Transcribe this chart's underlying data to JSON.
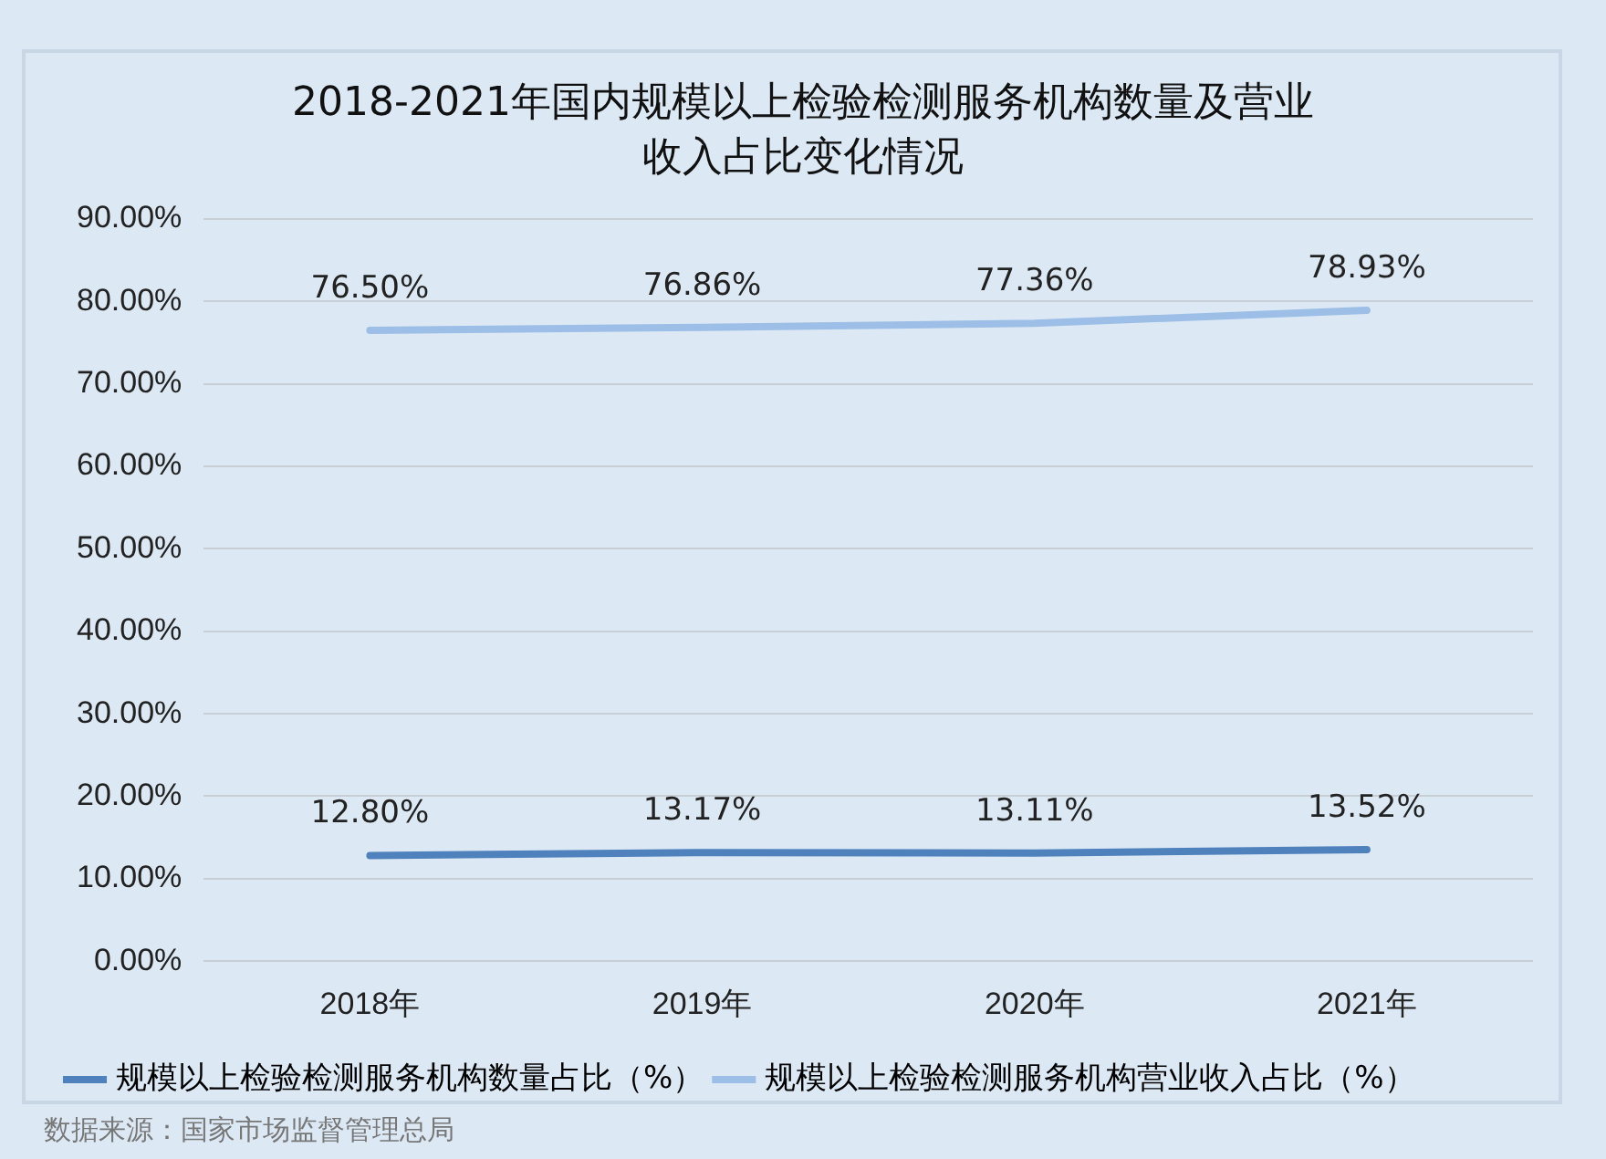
{
  "chart_data": {
    "type": "line",
    "title": "2018-2021年国内规模以上检验检测服务机构数量及营业收入占比变化情况",
    "categories": [
      "2018年",
      "2019年",
      "2020年",
      "2021年"
    ],
    "series": [
      {
        "name": "规模以上检验检测服务机构数量占比（%）",
        "color": "#4f81bd",
        "values": [
          12.8,
          13.17,
          13.11,
          13.52
        ],
        "value_labels": [
          "12.80%",
          "13.17%",
          "13.11%",
          "13.52%"
        ]
      },
      {
        "name": "规模以上检验检测服务机构营业收入占比（%）",
        "color": "#9dbee6",
        "values": [
          76.5,
          76.86,
          77.36,
          78.93
        ],
        "value_labels": [
          "76.50%",
          "76.86%",
          "77.36%",
          "78.93%"
        ]
      }
    ],
    "ylim": [
      0,
      90
    ],
    "yticks": [
      {
        "value": 0,
        "label": "0.00%"
      },
      {
        "value": 10,
        "label": "10.00%"
      },
      {
        "value": 20,
        "label": "20.00%"
      },
      {
        "value": 30,
        "label": "30.00%"
      },
      {
        "value": 40,
        "label": "40.00%"
      },
      {
        "value": 50,
        "label": "50.00%"
      },
      {
        "value": 60,
        "label": "60.00%"
      },
      {
        "value": 70,
        "label": "70.00%"
      },
      {
        "value": 80,
        "label": "80.00%"
      },
      {
        "value": 90,
        "label": "90.00%"
      }
    ],
    "grid": "y",
    "legend": "bottom",
    "marker": "none",
    "line_style": "solid",
    "annotations": [
      "数据来源：国家市场监督管理总局"
    ]
  }
}
